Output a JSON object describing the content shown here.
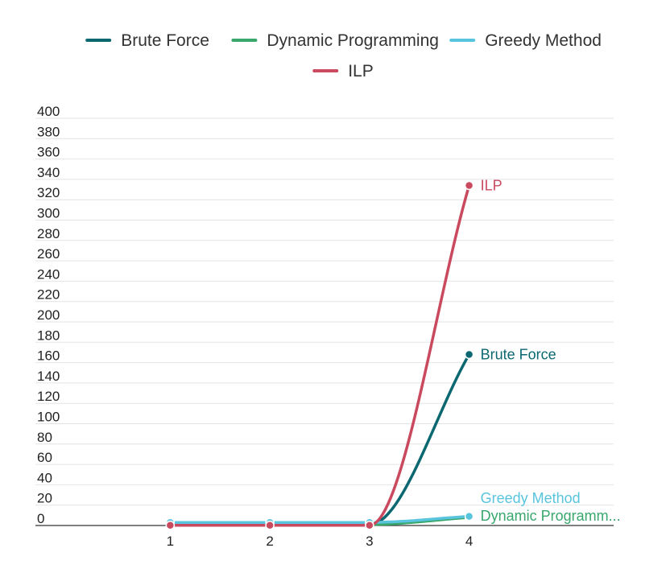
{
  "chart_data": {
    "type": "line",
    "title": "",
    "xlabel": "",
    "ylabel": "",
    "x": [
      1,
      2,
      3,
      4
    ],
    "xlim": [
      0.1,
      5.45
    ],
    "ylim": [
      0,
      400
    ],
    "yticks": [
      0,
      20,
      40,
      60,
      80,
      100,
      120,
      140,
      160,
      180,
      200,
      220,
      240,
      260,
      280,
      300,
      320,
      340,
      360,
      380,
      400
    ],
    "grid": true,
    "legend_position": "top",
    "end_labels": true,
    "series": [
      {
        "name": "Brute Force",
        "color": "#0b6770",
        "values": [
          0.5,
          0.5,
          0.8,
          168
        ]
      },
      {
        "name": "Dynamic Programming",
        "color": "#3aa76d",
        "values": [
          1.5,
          1.5,
          1.0,
          8
        ]
      },
      {
        "name": "Greedy Method",
        "color": "#59c4dd",
        "values": [
          3,
          3,
          3,
          9
        ]
      },
      {
        "name": "ILP",
        "color": "#c94a5f",
        "values": [
          0.2,
          0.2,
          0.2,
          334
        ]
      }
    ],
    "end_label_text": {
      "Dynamic Programming": "Dynamic Programm..."
    }
  }
}
